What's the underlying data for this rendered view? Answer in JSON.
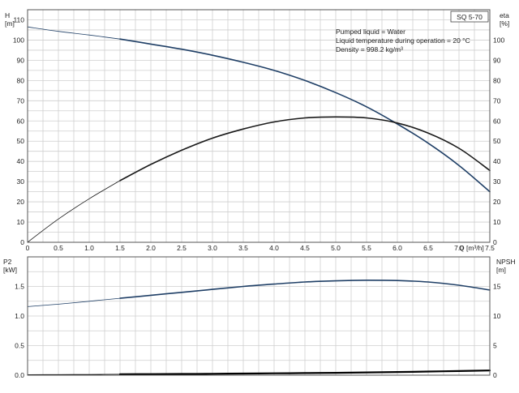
{
  "title_box": "SQ 5-70",
  "info": [
    "Pumped liquid = Water",
    "Liquid temperature during operation = 20 °C",
    "Density = 998.2 kg/m³"
  ],
  "chart_data": [
    {
      "type": "line",
      "name": "upper-chart",
      "xlabel": "Q [m³/h]",
      "ylabel_left": [
        "H",
        "[m]"
      ],
      "ylabel_right": [
        "eta",
        "[%]"
      ],
      "xlim": [
        0,
        7.5
      ],
      "ylim_left": [
        0,
        110
      ],
      "ylim_right": [
        0,
        110
      ],
      "x_ticks": [
        "0",
        "0.5",
        "1.0",
        "1.5",
        "2.0",
        "2.5",
        "3.0",
        "3.5",
        "4.0",
        "4.5",
        "5.0",
        "5.5",
        "6.0",
        "6.5",
        "7.0",
        "7.5"
      ],
      "y_ticks_left": [
        "0",
        "10",
        "20",
        "30",
        "40",
        "50",
        "60",
        "70",
        "80",
        "90",
        "100",
        "110"
      ],
      "y_ticks_right": [
        "0",
        "10",
        "20",
        "30",
        "40",
        "50",
        "60",
        "70",
        "80",
        "90",
        "100"
      ],
      "grid": true,
      "series": [
        {
          "axis": "left",
          "color": "#1f3f66",
          "thin_until": 1.5,
          "x": [
            0,
            0.5,
            1.0,
            1.5,
            2.0,
            2.5,
            3.0,
            3.5,
            4.0,
            4.5,
            5.0,
            5.5,
            6.0,
            6.5,
            7.0,
            7.5
          ],
          "y": [
            106.5,
            104.3,
            102.5,
            100.5,
            98,
            95.5,
            92.5,
            89,
            85,
            80,
            74,
            67,
            58.5,
            49,
            38,
            25
          ]
        },
        {
          "axis": "right",
          "color": "#1a1a1a",
          "thin_until": 1.5,
          "x": [
            0,
            0.5,
            1.0,
            1.5,
            2.0,
            2.5,
            3.0,
            3.5,
            4.0,
            4.5,
            5.0,
            5.5,
            6.0,
            6.5,
            7.0,
            7.5
          ],
          "y": [
            0,
            11.5,
            21.5,
            30.5,
            38.5,
            45.5,
            51.5,
            56,
            59.5,
            61.5,
            62,
            61.5,
            59,
            54,
            46.5,
            35.5
          ]
        }
      ]
    },
    {
      "type": "line",
      "name": "lower-chart",
      "ylabel_left": [
        "P2",
        "[kW]"
      ],
      "ylabel_right": [
        "NPSH",
        "[m]"
      ],
      "xlim": [
        0,
        7.5
      ],
      "ylim_left": [
        0,
        2.0
      ],
      "ylim_right": [
        0,
        20
      ],
      "y_ticks_left": [
        "0.0",
        "0.5",
        "1.0",
        "1.5"
      ],
      "y_ticks_right": [
        "0",
        "5",
        "10",
        "15"
      ],
      "grid": true,
      "series": [
        {
          "axis": "left",
          "color": "#1f3f66",
          "thin_until": 1.5,
          "x": [
            0,
            0.5,
            1.0,
            1.5,
            2.0,
            2.5,
            3.0,
            3.5,
            4.0,
            4.5,
            5.0,
            5.5,
            6.0,
            6.5,
            7.0,
            7.5
          ],
          "y": [
            1.16,
            1.2,
            1.25,
            1.3,
            1.35,
            1.4,
            1.45,
            1.5,
            1.54,
            1.575,
            1.595,
            1.605,
            1.6,
            1.575,
            1.52,
            1.44
          ]
        },
        {
          "axis": "right",
          "color": "#000000",
          "thin_until": 1.5,
          "x": [
            0,
            0.5,
            1.0,
            1.5,
            2.0,
            2.5,
            3.0,
            3.5,
            4.0,
            4.5,
            5.0,
            5.5,
            6.0,
            6.5,
            7.0,
            7.5
          ],
          "y": [
            0.08,
            0.1,
            0.12,
            0.15,
            0.18,
            0.2,
            0.23,
            0.27,
            0.31,
            0.35,
            0.4,
            0.46,
            0.53,
            0.61,
            0.7,
            0.79
          ]
        }
      ]
    }
  ]
}
